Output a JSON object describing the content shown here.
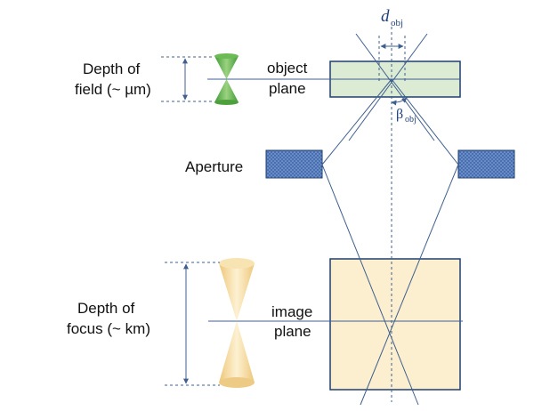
{
  "labels": {
    "dof_line1": "Depth of",
    "dof_line2": "field (~ µm)",
    "object_line1": "object",
    "object_line2": "plane",
    "aperture": "Aperture",
    "dfocus_line1": "Depth of",
    "dfocus_line2": "focus (~ km)",
    "image_line1": "image",
    "image_line2": "plane",
    "d_symbol": "d",
    "d_subscript": "obj",
    "beta_symbol": "β",
    "beta_subscript": "obj"
  },
  "colors": {
    "line": "#3f5f8f",
    "object_plane_fill": "#dcebd3",
    "image_plane_fill": "#fbefcf",
    "aperture_fill": "#4a6fb0",
    "green_cone": "#5fb04a",
    "gold_cone": "#f3d58f"
  }
}
